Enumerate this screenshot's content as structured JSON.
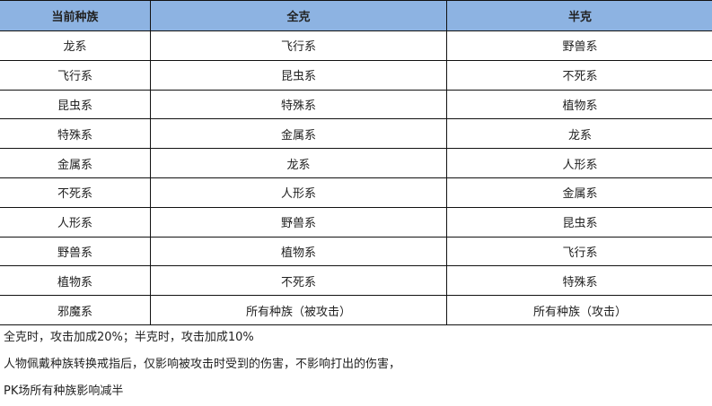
{
  "table": {
    "headers": [
      "当前种族",
      "全克",
      "半克"
    ],
    "rows": [
      [
        "龙系",
        "飞行系",
        "野兽系"
      ],
      [
        "飞行系",
        "昆虫系",
        "不死系"
      ],
      [
        "昆虫系",
        "特殊系",
        "植物系"
      ],
      [
        "特殊系",
        "金属系",
        "龙系"
      ],
      [
        "金属系",
        "龙系",
        "人形系"
      ],
      [
        "不死系",
        "人形系",
        "金属系"
      ],
      [
        "人形系",
        "野兽系",
        "昆虫系"
      ],
      [
        "野兽系",
        "植物系",
        "飞行系"
      ],
      [
        "植物系",
        "不死系",
        "特殊系"
      ],
      [
        "邪魔系",
        "所有种族（被攻击）",
        "所有种族（攻击）"
      ]
    ],
    "header_color": "#8db3e2"
  },
  "notes": [
    "全克时，攻击加成20%；半克时，攻击加成10%",
    "人物佩戴种族转换戒指后，仅影响被攻击时受到的伤害，不影响打出的伤害，",
    "PK场所有种族影响减半"
  ]
}
